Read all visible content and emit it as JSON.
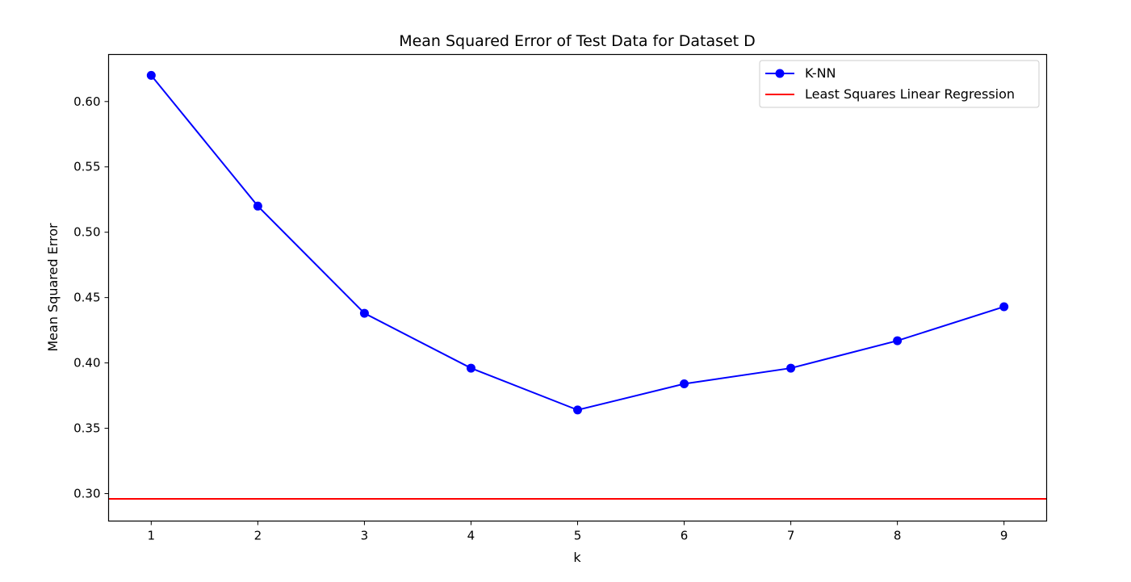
{
  "chart_data": {
    "type": "line",
    "title": "Mean Squared Error of Test Data for Dataset D",
    "xlabel": "k",
    "ylabel": "Mean Squared Error",
    "x": [
      1,
      2,
      3,
      4,
      5,
      6,
      7,
      8,
      9
    ],
    "xlim": [
      0.6,
      9.4
    ],
    "ylim": [
      0.279,
      0.636
    ],
    "xticks": [
      "1",
      "2",
      "3",
      "4",
      "5",
      "6",
      "7",
      "8",
      "9"
    ],
    "yticks": [
      "0.30",
      "0.35",
      "0.40",
      "0.45",
      "0.50",
      "0.55",
      "0.60"
    ],
    "grid": false,
    "legend_position": "top-right",
    "series": [
      {
        "name": "K-NN",
        "color": "#0000ff",
        "marker": "circle",
        "values": [
          0.62,
          0.52,
          0.438,
          0.396,
          0.364,
          0.384,
          0.396,
          0.417,
          0.443
        ]
      }
    ],
    "reference_lines": [
      {
        "name": "Least Squares Linear Regression",
        "color": "#ff0000",
        "y": 0.296
      }
    ]
  }
}
